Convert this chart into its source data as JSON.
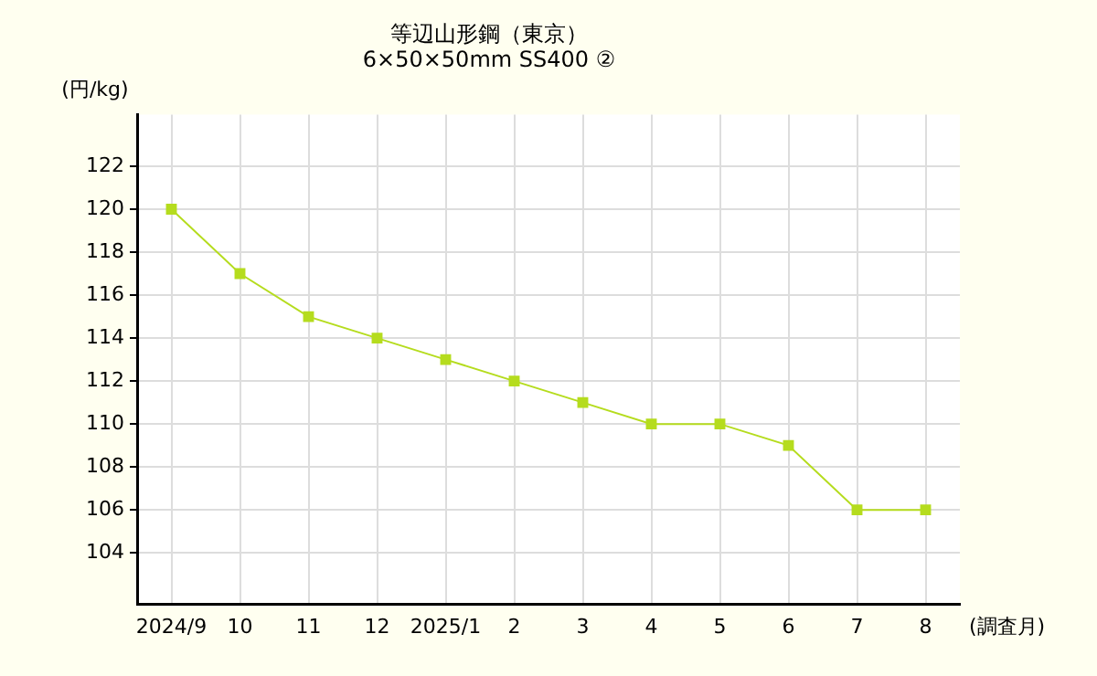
{
  "chart_data": {
    "type": "line",
    "title": "等辺山形鋼（東京）\n6×50×50mm SS400 ②",
    "ylabel": "(円/kg)",
    "xlabel": "(調査月)",
    "categories": [
      "2024/9",
      "10",
      "11",
      "12",
      "2025/1",
      "2",
      "3",
      "4",
      "5",
      "6",
      "7",
      "8"
    ],
    "series": [
      {
        "color": "#b5dc1e",
        "values": [
          120,
          117,
          115,
          114,
          113,
          112,
          111,
          110,
          110,
          109,
          106,
          106
        ]
      }
    ],
    "ylim": [
      101.6,
      124.4
    ],
    "yticks": [
      104,
      106,
      108,
      110,
      112,
      114,
      116,
      118,
      120,
      122
    ],
    "grid": true,
    "legend": false,
    "marker": "square",
    "line_style": "solid"
  }
}
